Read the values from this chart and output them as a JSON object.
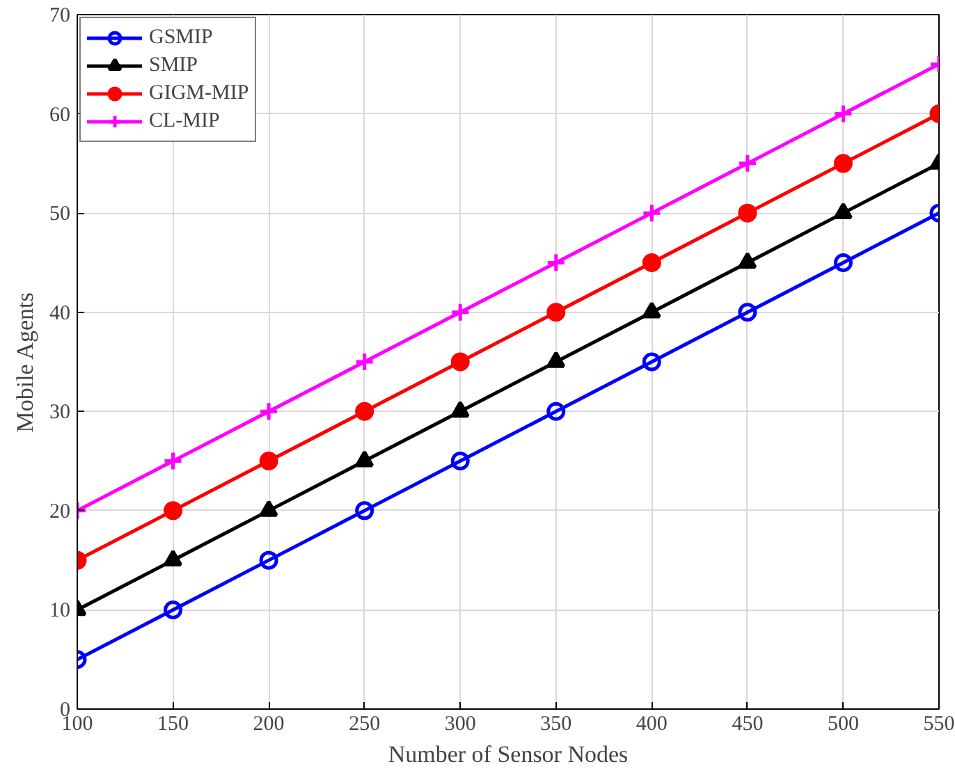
{
  "chart_data": {
    "type": "line",
    "xlabel": "Number of Sensor Nodes",
    "ylabel": "Mobile Agents",
    "x": [
      100,
      150,
      200,
      250,
      300,
      350,
      400,
      450,
      500,
      550
    ],
    "series": [
      {
        "name": "GSMIP",
        "color": "#0000ff",
        "marker": "circle",
        "values": [
          5,
          10,
          15,
          20,
          25,
          30,
          35,
          40,
          45,
          50
        ]
      },
      {
        "name": "SMIP",
        "color": "#000000",
        "marker": "triangle",
        "values": [
          10,
          15,
          20,
          25,
          30,
          35,
          40,
          45,
          50,
          55
        ]
      },
      {
        "name": "GIGM-MIP",
        "color": "#ff0000",
        "marker": "circle",
        "values": [
          15,
          20,
          25,
          30,
          35,
          40,
          45,
          50,
          55,
          60
        ]
      },
      {
        "name": "CL-MIP",
        "color": "#ff00ff",
        "marker": "cross",
        "values": [
          20,
          25,
          30,
          35,
          40,
          45,
          50,
          55,
          60,
          65
        ]
      }
    ],
    "xlim": [
      100,
      550
    ],
    "xticks": [
      100,
      150,
      200,
      250,
      300,
      350,
      400,
      450,
      500,
      550
    ],
    "ylim": [
      0,
      70
    ],
    "yticks": [
      0,
      10,
      20,
      30,
      40,
      50,
      60,
      70
    ],
    "grid": true,
    "legend": "top left",
    "line_style": "solid"
  }
}
